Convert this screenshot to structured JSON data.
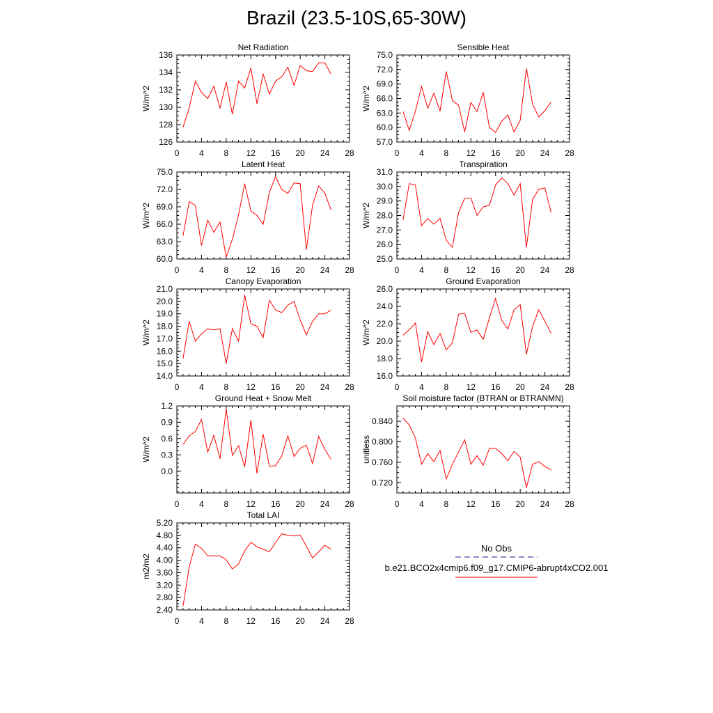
{
  "page": {
    "title": "Brazil (23.5-10S,65-30W)"
  },
  "legend": {
    "entries": [
      {
        "label": "No Obs",
        "color": "#1b1b8c",
        "dash": true
      },
      {
        "label": "b.e21.BCO2x4cmip6.f09_g17.CMIP6-abrupt4xCO2.001",
        "color": "#ff0000",
        "dash": false
      }
    ]
  },
  "colors": {
    "series": "#ff0000",
    "axis": "#000000"
  },
  "chart_data": [
    {
      "type": "line",
      "title": "Net Radiation",
      "ylabel": "W/m^2",
      "xlim": [
        0,
        28
      ],
      "ylim": [
        126,
        136
      ],
      "xticks": [
        "0",
        "4",
        "8",
        "12",
        "16",
        "20",
        "24",
        "28"
      ],
      "yticks": [
        "126",
        "128",
        "130",
        "132",
        "134",
        "136"
      ],
      "x": [
        1,
        2,
        3,
        4,
        5,
        6,
        7,
        8,
        9,
        10,
        11,
        12,
        13,
        14,
        15,
        16,
        17,
        18,
        19,
        20,
        21,
        22,
        23,
        24,
        25
      ],
      "values": [
        127.7,
        129.9,
        133.0,
        131.7,
        131.0,
        132.4,
        129.9,
        132.9,
        129.2,
        133.0,
        132.2,
        134.5,
        130.4,
        133.8,
        131.5,
        133.0,
        133.5,
        134.6,
        132.5,
        134.8,
        134.2,
        134.1,
        135.1,
        135.1,
        133.8
      ]
    },
    {
      "type": "line",
      "title": "Sensible Heat",
      "ylabel": "W/m^2",
      "xlim": [
        0,
        28
      ],
      "ylim": [
        57,
        75
      ],
      "xticks": [
        "0",
        "4",
        "8",
        "12",
        "16",
        "20",
        "24",
        "28"
      ],
      "yticks": [
        "57.0",
        "60.0",
        "63.0",
        "66.0",
        "69.0",
        "72.0",
        "75.0"
      ],
      "x": [
        1,
        2,
        3,
        4,
        5,
        6,
        7,
        8,
        9,
        10,
        11,
        12,
        13,
        14,
        15,
        16,
        17,
        18,
        19,
        20,
        21,
        22,
        23,
        24,
        25
      ],
      "values": [
        63.3,
        59.4,
        63.4,
        68.5,
        64.0,
        67.1,
        63.4,
        71.6,
        65.6,
        64.6,
        59.1,
        65.2,
        63.3,
        67.3,
        60.0,
        59.0,
        61.3,
        62.6,
        59.1,
        61.5,
        72.2,
        64.8,
        62.2,
        63.5,
        65.3
      ]
    },
    {
      "type": "line",
      "title": "Latent Heat",
      "ylabel": "W/m^2",
      "xlim": [
        0,
        28
      ],
      "ylim": [
        60,
        75
      ],
      "xticks": [
        "0",
        "4",
        "8",
        "12",
        "16",
        "20",
        "24",
        "28"
      ],
      "yticks": [
        "60.0",
        "63.0",
        "66.0",
        "69.0",
        "72.0",
        "75.0"
      ],
      "x": [
        1,
        2,
        3,
        4,
        5,
        6,
        7,
        8,
        9,
        10,
        11,
        12,
        13,
        14,
        15,
        16,
        17,
        18,
        19,
        20,
        21,
        22,
        23,
        24,
        25
      ],
      "values": [
        64.0,
        69.9,
        69.2,
        62.3,
        66.7,
        64.6,
        66.4,
        60.3,
        63.4,
        67.6,
        73.0,
        68.3,
        67.5,
        66.0,
        71.5,
        74.2,
        72.0,
        71.3,
        73.1,
        73.0,
        61.6,
        69.3,
        72.6,
        71.3,
        68.5
      ]
    },
    {
      "type": "line",
      "title": "Transpiration",
      "ylabel": "W/m^2",
      "xlim": [
        0,
        28
      ],
      "ylim": [
        25,
        31
      ],
      "xticks": [
        "0",
        "4",
        "8",
        "12",
        "16",
        "20",
        "24",
        "28"
      ],
      "yticks": [
        "25.0",
        "26.0",
        "27.0",
        "28.0",
        "29.0",
        "30.0",
        "31.0"
      ],
      "x": [
        1,
        2,
        3,
        4,
        5,
        6,
        7,
        8,
        9,
        10,
        11,
        12,
        13,
        14,
        15,
        16,
        17,
        18,
        19,
        20,
        21,
        22,
        23,
        24,
        25
      ],
      "values": [
        27.7,
        30.2,
        30.1,
        27.3,
        27.8,
        27.4,
        27.8,
        26.3,
        25.8,
        28.2,
        29.2,
        29.2,
        28.0,
        28.6,
        28.7,
        30.1,
        30.6,
        30.2,
        29.4,
        30.2,
        25.8,
        29.1,
        29.8,
        29.9,
        28.2
      ]
    },
    {
      "type": "line",
      "title": "Canopy Evaporation",
      "ylabel": "W/m^2",
      "xlim": [
        0,
        28
      ],
      "ylim": [
        14,
        21
      ],
      "xticks": [
        "0",
        "4",
        "8",
        "12",
        "16",
        "20",
        "24",
        "28"
      ],
      "yticks": [
        "14.0",
        "15.0",
        "16.0",
        "17.0",
        "18.0",
        "19.0",
        "20.0",
        "21.0"
      ],
      "x": [
        1,
        2,
        3,
        4,
        5,
        6,
        7,
        8,
        9,
        10,
        11,
        12,
        13,
        14,
        15,
        16,
        17,
        18,
        19,
        20,
        21,
        22,
        23,
        24,
        25
      ],
      "values": [
        15.4,
        18.4,
        16.8,
        17.4,
        17.8,
        17.7,
        17.8,
        15.0,
        17.8,
        16.8,
        20.5,
        18.2,
        18.0,
        17.1,
        20.1,
        19.3,
        19.1,
        19.7,
        20.0,
        18.5,
        17.3,
        18.4,
        19.0,
        19.0,
        19.3
      ]
    },
    {
      "type": "line",
      "title": "Ground Evaporation",
      "ylabel": "W/m^2",
      "xlim": [
        0,
        28
      ],
      "ylim": [
        16,
        26
      ],
      "xticks": [
        "0",
        "4",
        "8",
        "12",
        "16",
        "20",
        "24",
        "28"
      ],
      "yticks": [
        "16.0",
        "18.0",
        "20.0",
        "22.0",
        "24.0",
        "26.0"
      ],
      "x": [
        1,
        2,
        3,
        4,
        5,
        6,
        7,
        8,
        9,
        10,
        11,
        12,
        13,
        14,
        15,
        16,
        17,
        18,
        19,
        20,
        21,
        22,
        23,
        24,
        25
      ],
      "values": [
        20.7,
        21.3,
        22.1,
        17.6,
        21.1,
        19.6,
        20.9,
        19.0,
        19.8,
        23.1,
        23.2,
        21.0,
        21.3,
        20.2,
        22.7,
        24.9,
        22.4,
        21.4,
        23.6,
        24.2,
        18.5,
        21.7,
        23.6,
        22.3,
        20.9
      ]
    },
    {
      "type": "line",
      "title": "Ground Heat + Snow Melt",
      "ylabel": "W/m^2",
      "xlim": [
        0,
        28
      ],
      "ylim": [
        -0.4,
        1.2
      ],
      "xticks": [
        "0",
        "4",
        "8",
        "12",
        "16",
        "20",
        "24",
        "28"
      ],
      "yticks": [
        "0.0",
        "0.3",
        "0.6",
        "0.9",
        "1.2"
      ],
      "ytick_values": [
        0,
        0.3,
        0.6,
        0.9,
        1.2
      ],
      "x": [
        1,
        2,
        3,
        4,
        5,
        6,
        7,
        8,
        9,
        10,
        11,
        12,
        13,
        14,
        15,
        16,
        17,
        18,
        19,
        20,
        21,
        22,
        23,
        24,
        25
      ],
      "values": [
        0.49,
        0.65,
        0.73,
        0.95,
        0.35,
        0.66,
        0.23,
        1.14,
        0.29,
        0.47,
        0.08,
        0.94,
        -0.04,
        0.68,
        0.09,
        0.1,
        0.28,
        0.65,
        0.27,
        0.42,
        0.48,
        0.14,
        0.64,
        0.4,
        0.22
      ]
    },
    {
      "type": "line",
      "title": "Soil moisture factor (BTRAN or BTRANMN)",
      "ylabel": "unitless",
      "xlim": [
        0,
        28
      ],
      "ylim": [
        0.7,
        0.87
      ],
      "xticks": [
        "0",
        "4",
        "8",
        "12",
        "16",
        "20",
        "24",
        "28"
      ],
      "yticks": [
        "0.720",
        "0.760",
        "0.800",
        "0.840"
      ],
      "ytick_values": [
        0.72,
        0.76,
        0.8,
        0.84
      ],
      "x": [
        1,
        2,
        3,
        4,
        5,
        6,
        7,
        8,
        9,
        10,
        11,
        12,
        13,
        14,
        15,
        16,
        17,
        18,
        19,
        20,
        21,
        22,
        23,
        24,
        25
      ],
      "values": [
        0.846,
        0.833,
        0.807,
        0.756,
        0.777,
        0.761,
        0.783,
        0.727,
        0.756,
        0.78,
        0.804,
        0.756,
        0.773,
        0.754,
        0.787,
        0.787,
        0.777,
        0.763,
        0.781,
        0.77,
        0.71,
        0.756,
        0.761,
        0.752,
        0.745
      ]
    },
    {
      "type": "line",
      "title": "Total LAI",
      "ylabel": "m2/m2",
      "xlim": [
        0,
        28
      ],
      "ylim": [
        2.4,
        5.2
      ],
      "xticks": [
        "0",
        "4",
        "8",
        "12",
        "16",
        "20",
        "24",
        "28"
      ],
      "yticks": [
        "2.40",
        "2.80",
        "3.20",
        "3.60",
        "4.00",
        "4.40",
        "4.80",
        "5.20"
      ],
      "x": [
        1,
        2,
        3,
        4,
        5,
        6,
        7,
        8,
        9,
        10,
        11,
        12,
        13,
        14,
        15,
        16,
        17,
        18,
        19,
        20,
        21,
        22,
        23,
        24,
        25
      ],
      "values": [
        2.52,
        3.78,
        4.52,
        4.38,
        4.14,
        4.14,
        4.14,
        4.01,
        3.72,
        3.88,
        4.3,
        4.58,
        4.43,
        4.35,
        4.27,
        4.57,
        4.85,
        4.8,
        4.78,
        4.81,
        4.45,
        4.07,
        4.27,
        4.48,
        4.35
      ]
    }
  ]
}
